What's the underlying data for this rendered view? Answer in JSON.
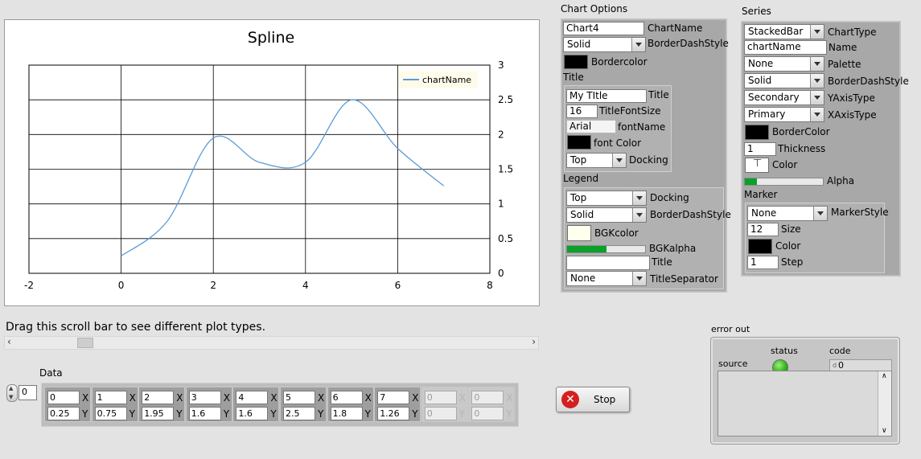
{
  "chart": {
    "title": "Spline",
    "legend_label": "chartName",
    "x_ticks": [
      "-2",
      "0",
      "2",
      "4",
      "6",
      "8"
    ],
    "y_ticks": [
      "0",
      "0.5",
      "1",
      "1.5",
      "2",
      "2.5",
      "3"
    ]
  },
  "chart_data": {
    "type": "line",
    "title": "Spline",
    "x": [
      0,
      1,
      2,
      3,
      4,
      5,
      6,
      7
    ],
    "series": [
      {
        "name": "chartName",
        "values": [
          0.25,
          0.75,
          1.95,
          1.6,
          1.6,
          2.5,
          1.8,
          1.26
        ]
      }
    ],
    "xlim": [
      -2,
      8
    ],
    "ylim": [
      0,
      3
    ],
    "grid": true,
    "legend": "top-right",
    "y_axis_side": "right",
    "line_color": "#5b9bd5"
  },
  "hint_text": "Drag this scroll bar to see different plot types.",
  "data_section": {
    "label": "Data",
    "index": "0",
    "points": [
      {
        "x": "0",
        "y": "0.25"
      },
      {
        "x": "1",
        "y": "0.75"
      },
      {
        "x": "2",
        "y": "1.95"
      },
      {
        "x": "3",
        "y": "1.6"
      },
      {
        "x": "4",
        "y": "1.6"
      },
      {
        "x": "5",
        "y": "2.5"
      },
      {
        "x": "6",
        "y": "1.8"
      },
      {
        "x": "7",
        "y": "1.26"
      },
      {
        "x": "0",
        "y": "0"
      },
      {
        "x": "0",
        "y": "0"
      }
    ],
    "x_label": "X",
    "y_label": "Y"
  },
  "stop_label": "Stop",
  "chart_options": {
    "heading": "Chart Options",
    "chart_name_value": "Chart4",
    "chart_name_label": "ChartName",
    "border_dash_value": "Solid",
    "border_dash_label": "BorderDashStyle",
    "border_color_label": "Bordercolor",
    "title_section": "Title",
    "title_value": "My TItle",
    "title_label": "Title",
    "title_font_size_value": "16",
    "title_font_size_label": "TitleFontSize",
    "font_name_value": "Arial",
    "font_name_label": "fontName",
    "font_color_label": "font Color",
    "title_docking_value": "Top",
    "title_docking_label": "Docking",
    "legend_section": "Legend",
    "legend_docking_value": "Top",
    "legend_docking_label": "Docking",
    "legend_dash_value": "Solid",
    "legend_dash_label": "BorderDashStyle",
    "bg_color_label": "BGKcolor",
    "bg_alpha_label": "BGKalpha",
    "bg_alpha_fraction": 0.5,
    "legend_title_label": "Title",
    "legend_title_value": "",
    "title_separator_value": "None",
    "title_separator_label": "TitleSeparator"
  },
  "series_panel": {
    "heading": "Series",
    "chart_type_value": "StackedBar",
    "chart_type_label": "ChartType",
    "name_value": "chartName",
    "name_label": "Name",
    "palette_value": "None",
    "palette_label": "Palette",
    "dash_value": "Solid",
    "dash_label": "BorderDashStyle",
    "y_axis_type_value": "Secondary",
    "y_axis_type_label": "YAxisType",
    "x_axis_type_value": "Primary",
    "x_axis_type_label": "XAxisType",
    "border_color_label": "BorderColor",
    "thickness_value": "1",
    "thickness_label": "Thickness",
    "color_label": "Color",
    "alpha_label": "Alpha",
    "alpha_fraction": 0.15,
    "marker_section": "Marker",
    "marker_style_value": "None",
    "marker_style_label": "MarkerStyle",
    "marker_size_value": "12",
    "marker_size_label": "Size",
    "marker_color_label": "Color",
    "marker_step_value": "1",
    "marker_step_label": "Step"
  },
  "error_out": {
    "heading": "error out",
    "status_label": "status",
    "code_label": "code",
    "source_label": "source",
    "code_value": "0",
    "code_prefix": "d"
  },
  "colors": {
    "status_led": "#33b519",
    "bg_swatch": "#ffffee",
    "panel": "#a8a8a8"
  }
}
